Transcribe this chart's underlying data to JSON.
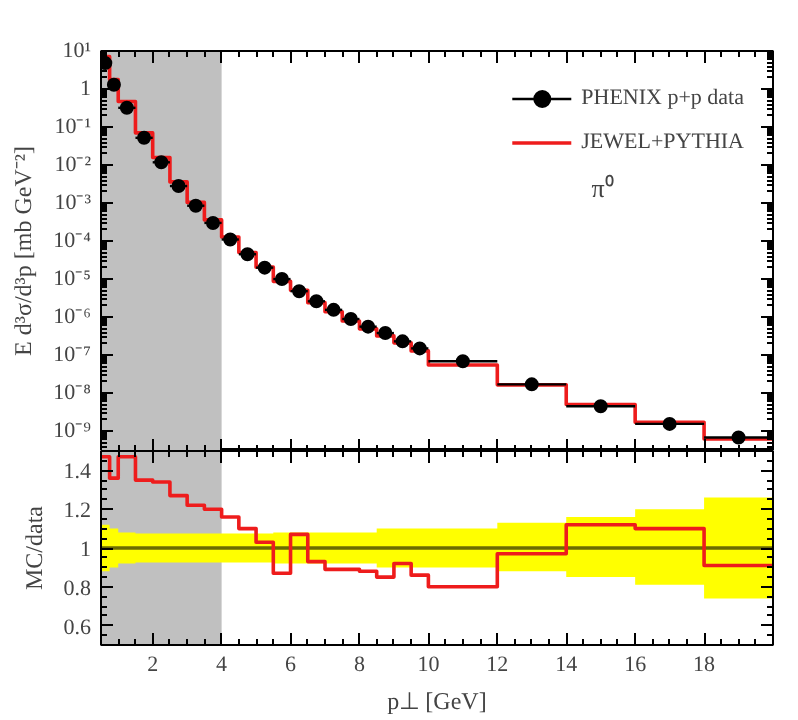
{
  "chart_data": [
    {
      "type": "scatter",
      "ylabel": "E d³σ/d³p [mb GeV⁻²]",
      "annotations": [
        "π⁰"
      ],
      "log": "y",
      "xlim": [
        0.5,
        20
      ],
      "xticks": [
        2,
        4,
        6,
        8,
        10,
        12,
        14,
        16,
        18
      ],
      "ylim": [
        3e-10,
        10
      ],
      "yticks": [
        {
          "value": 10,
          "label": "10¹"
        },
        1,
        {
          "value": 0.1,
          "label": "10⁻¹"
        },
        {
          "value": 0.01,
          "label": "10⁻²"
        },
        {
          "value": 0.001,
          "label": "10⁻³"
        },
        {
          "value": 0.0001,
          "label": "10⁻⁴"
        },
        {
          "value": 1e-05,
          "label": "10⁻⁵"
        },
        {
          "value": 1e-06,
          "label": "10⁻⁶"
        },
        {
          "value": 1e-07,
          "label": "10⁻⁷"
        },
        {
          "value": 1e-08,
          "label": "10⁻⁸"
        },
        {
          "value": 1e-09,
          "label": "10⁻⁹"
        }
      ],
      "tick_labels": "y",
      "legend": "top right",
      "grid": false,
      "bands": [
        {
          "axis": "x",
          "from": 0.5,
          "to": 4,
          "color": "#c0c0c0"
        }
      ],
      "series": [
        {
          "name": "PHENIX p+p data",
          "color": "#000000",
          "marker": "circle",
          "x": [
            0.625,
            0.875,
            1.25,
            1.75,
            2.25,
            2.75,
            3.25,
            3.75,
            4.25,
            4.75,
            5.25,
            5.75,
            6.25,
            6.75,
            7.25,
            7.75,
            8.25,
            8.75,
            9.25,
            9.75,
            11,
            13,
            15,
            17,
            19
          ],
          "values": [
            4.8,
            1.3,
            0.32,
            0.052,
            0.0118,
            0.0028,
            0.00085,
            0.0003,
            0.00011,
            4.5e-05,
            2e-05,
            1e-05,
            4.8e-06,
            2.6e-06,
            1.55e-06,
            8.9e-07,
            5.6e-07,
            3.8e-07,
            2.3e-07,
            1.5e-07,
            6.9e-08,
            1.7e-08,
            4.5e-09,
            1.55e-09,
            6.8e-10
          ],
          "xerrors": [
            0.125,
            0.125,
            0.25,
            0.25,
            0.25,
            0.25,
            0.25,
            0.25,
            0.25,
            0.25,
            0.25,
            0.25,
            0.25,
            0.25,
            0.25,
            0.25,
            0.25,
            0.25,
            0.25,
            0.25,
            1,
            1,
            1,
            1,
            1
          ]
        },
        {
          "name": "JEWEL+PYTHIA",
          "type": "step",
          "color": "#ee1c1c",
          "x": [
            0.5,
            0.75,
            1,
            1.5,
            2,
            2.5,
            3,
            3.5,
            4,
            4.5,
            5,
            5.5,
            6,
            6.5,
            7,
            7.5,
            8,
            8.5,
            9,
            9.5,
            10,
            12,
            14,
            16,
            18,
            20
          ],
          "values": [
            7.1,
            1.77,
            0.47,
            0.07,
            0.0158,
            0.0036,
            0.00104,
            0.00036,
            0.000128,
            5e-05,
            2.06e-05,
            8.7e-06,
            5.1e-06,
            2.4e-06,
            1.38e-06,
            7.9e-07,
            4.9e-07,
            3.2e-07,
            2.1e-07,
            1.29e-07,
            5.5e-08,
            1.65e-08,
            5e-09,
            1.7e-09,
            6.2e-10,
            6.2e-10
          ]
        }
      ]
    },
    {
      "type": "step",
      "xlabel": "p⊥ [GeV]",
      "ylabel": "MC/data",
      "xlim": [
        0.5,
        20
      ],
      "xticks": [
        2,
        4,
        6,
        8,
        10,
        12,
        14,
        16,
        18
      ],
      "ylim": [
        0.5,
        1.5
      ],
      "yticks": [
        0.6,
        0.8,
        1,
        1.2,
        1.4
      ],
      "grid": false,
      "bands": [
        {
          "axis": "x",
          "from": 0.5,
          "to": 4,
          "color": "#c0c0c0"
        }
      ],
      "series": [
        {
          "color": "#6b6b00",
          "x": [
            0.5,
            0.75,
            1,
            1.5,
            2,
            2.5,
            3,
            3.5,
            4,
            4.5,
            5,
            5.5,
            6,
            6.5,
            7,
            7.5,
            8,
            8.5,
            9,
            9.5,
            10,
            12,
            14,
            16,
            18,
            20
          ],
          "values": [
            1,
            1,
            1,
            1,
            1,
            1,
            1,
            1,
            1,
            1,
            1,
            1,
            1,
            1,
            1,
            1,
            1,
            1,
            1,
            1,
            1,
            1,
            1,
            1,
            1,
            1
          ],
          "lower": [
            0.88,
            0.9,
            0.92,
            0.925,
            0.925,
            0.925,
            0.925,
            0.925,
            0.925,
            0.925,
            0.925,
            0.92,
            0.92,
            0.92,
            0.92,
            0.92,
            0.92,
            0.9,
            0.9,
            0.9,
            0.9,
            0.88,
            0.85,
            0.81,
            0.74,
            0.74
          ],
          "upper": [
            1.12,
            1.1,
            1.08,
            1.075,
            1.075,
            1.075,
            1.075,
            1.075,
            1.075,
            1.075,
            1.075,
            1.08,
            1.08,
            1.08,
            1.08,
            1.08,
            1.08,
            1.1,
            1.1,
            1.1,
            1.1,
            1.13,
            1.16,
            1.2,
            1.26,
            1.26
          ]
        },
        {
          "color": "#ee1c1c",
          "x": [
            0.5,
            0.75,
            1,
            1.5,
            2,
            2.5,
            3,
            3.5,
            4,
            4.5,
            5,
            5.5,
            6,
            6.5,
            7,
            7.5,
            8,
            8.5,
            9,
            9.5,
            10,
            12,
            14,
            16,
            18,
            20
          ],
          "values": [
            1.47,
            1.36,
            1.47,
            1.35,
            1.34,
            1.27,
            1.22,
            1.2,
            1.16,
            1.1,
            1.03,
            0.87,
            1.07,
            0.93,
            0.89,
            0.89,
            0.88,
            0.85,
            0.92,
            0.86,
            0.8,
            0.97,
            1.12,
            1.1,
            0.91,
            0.91
          ]
        }
      ]
    }
  ]
}
